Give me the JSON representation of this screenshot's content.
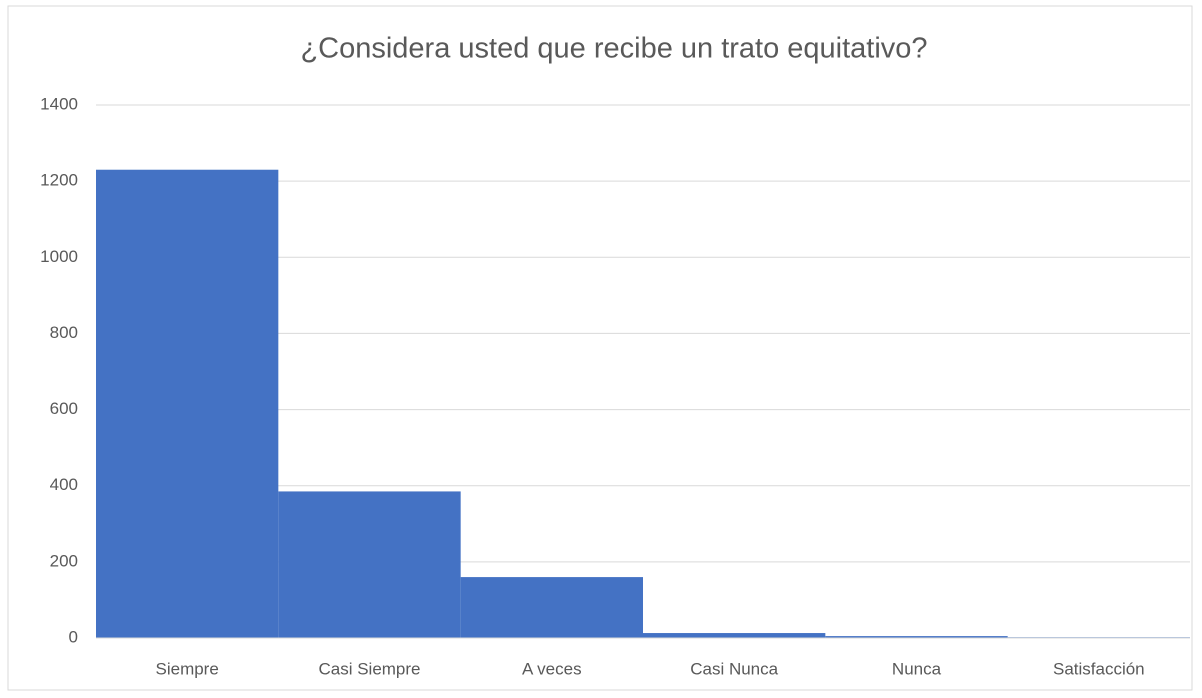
{
  "chart_data": {
    "type": "bar",
    "title": "¿Considera usted que recibe un trato equitativo?",
    "categories": [
      "Siempre",
      "Casi Siempre",
      "A veces",
      "Casi Nunca",
      "Nunca",
      "Satisfacción"
    ],
    "values": [
      1230,
      385,
      160,
      13,
      5,
      2
    ],
    "color": "#4472c4",
    "ylim": [
      0,
      1400
    ],
    "yticks": [
      0,
      200,
      400,
      600,
      800,
      1000,
      1200,
      1400
    ],
    "grid": true
  }
}
